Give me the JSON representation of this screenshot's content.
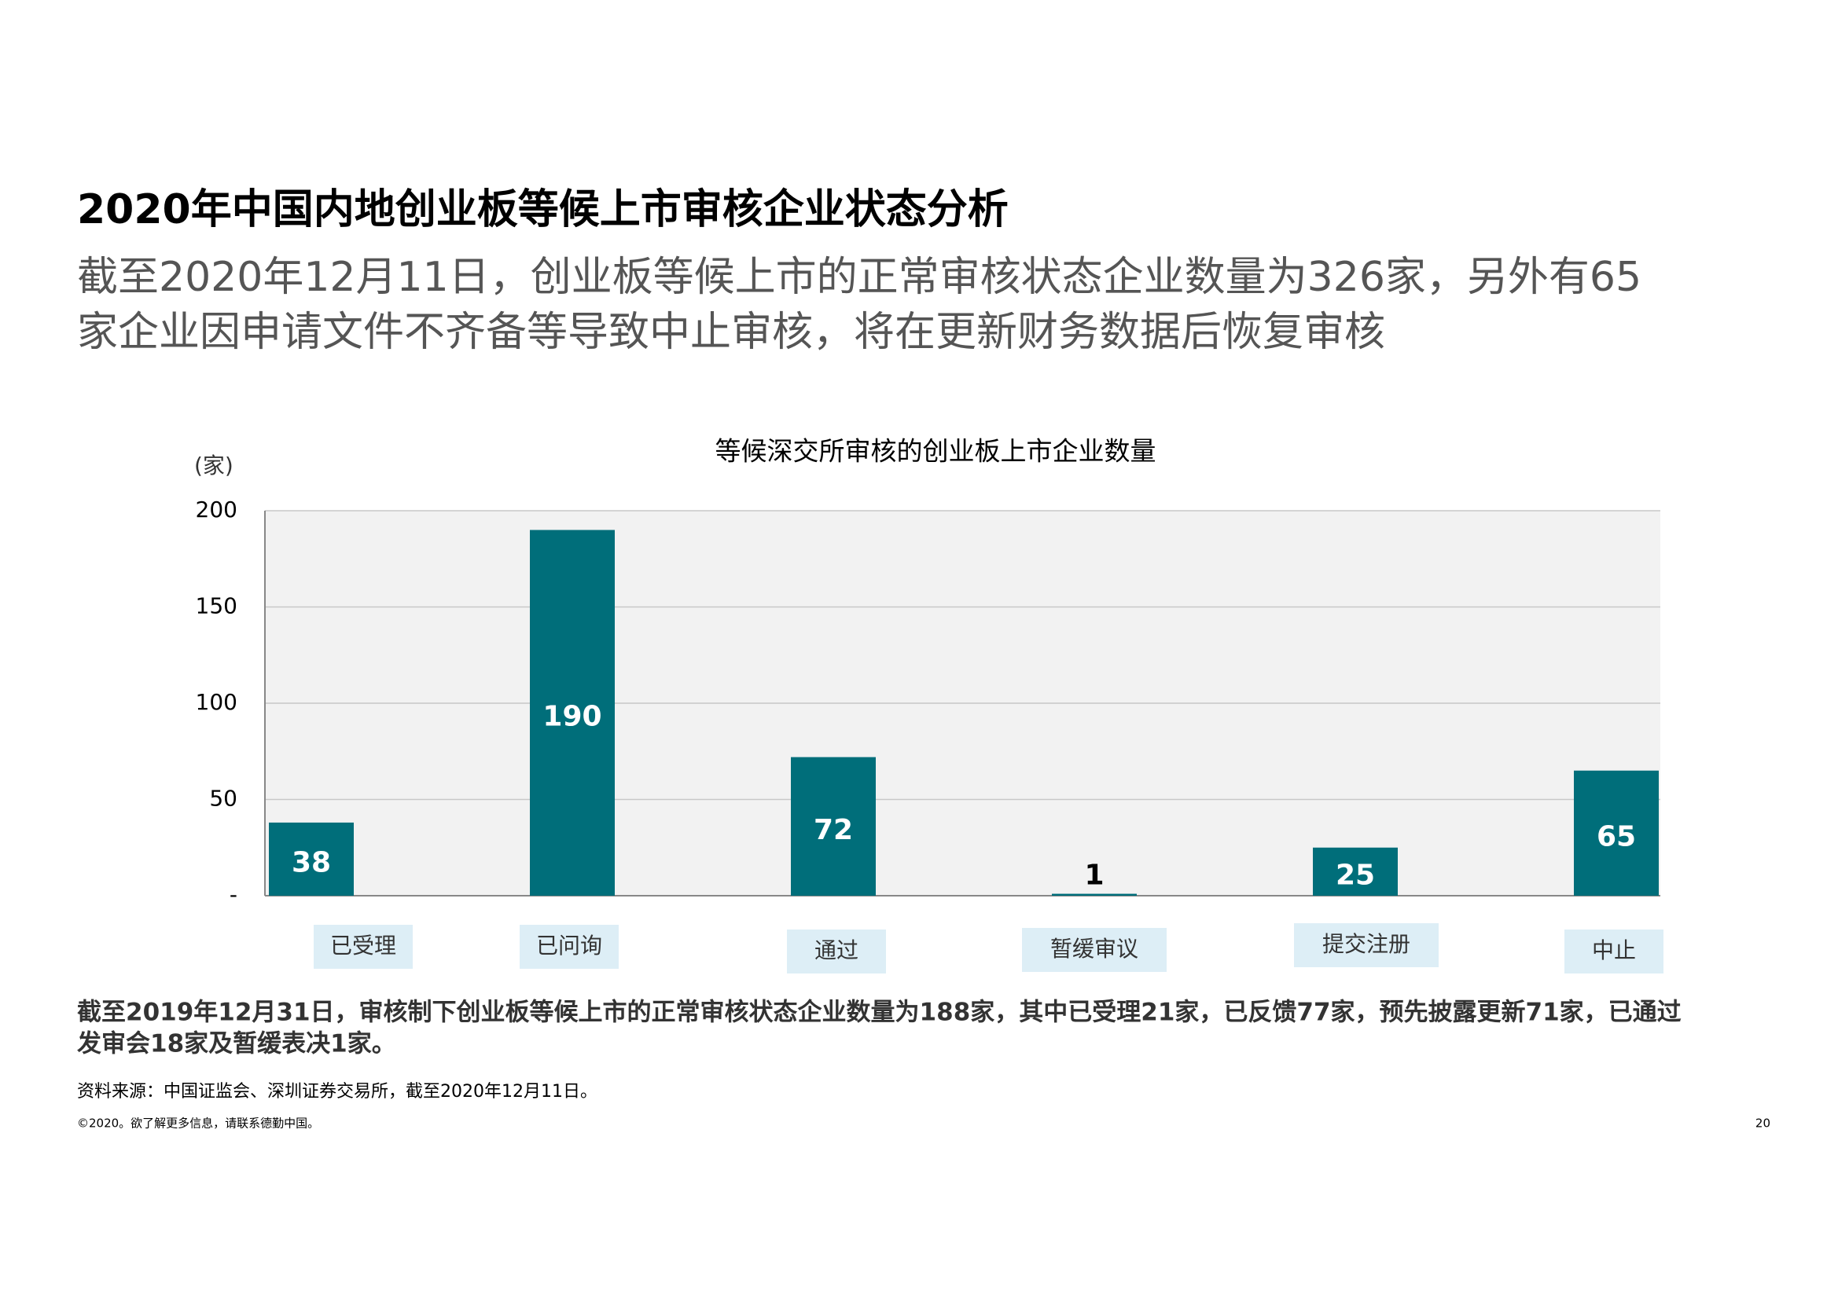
{
  "header": {
    "title": "2020年中国内地创业板等候上市审核企业状态分析",
    "subtitle_lines": [
      "截至2020年12月11日，创业板等候上市的正常审核状态企业数量为326家，另外有65",
      "家企业因申请文件不齐备等导致中止审核，将在更新财务数据后恢复审核"
    ]
  },
  "chart_data": {
    "type": "bar",
    "title": "等候深交所审核的创业板上市企业数量",
    "y_unit_label": "(家)",
    "categories": [
      "已受理",
      "已问询",
      "通过",
      "暂缓审议",
      "提交注册",
      "中止"
    ],
    "values": [
      38,
      190,
      72,
      1,
      25,
      65
    ],
    "color": "#006e7a",
    "ylim": [
      0,
      200
    ],
    "yticks": [
      {
        "value": 0,
        "label": "-"
      },
      50,
      100,
      150,
      200
    ],
    "grid": true
  },
  "footnote_lines": [
    "截至2019年12月31日，审核制下创业板等候上市的正常审核状态企业数量为188家，其中已受理21家，已反馈77家，预先披露更新71家，已通过",
    "发审会18家及暂缓表决1家。"
  ],
  "source": "资料来源：中国证监会、深圳证券交易所，截至2020年12月11日。",
  "copyright": "©2020。欲了解更多信息，请联系德勤中国。",
  "page_number": "20"
}
